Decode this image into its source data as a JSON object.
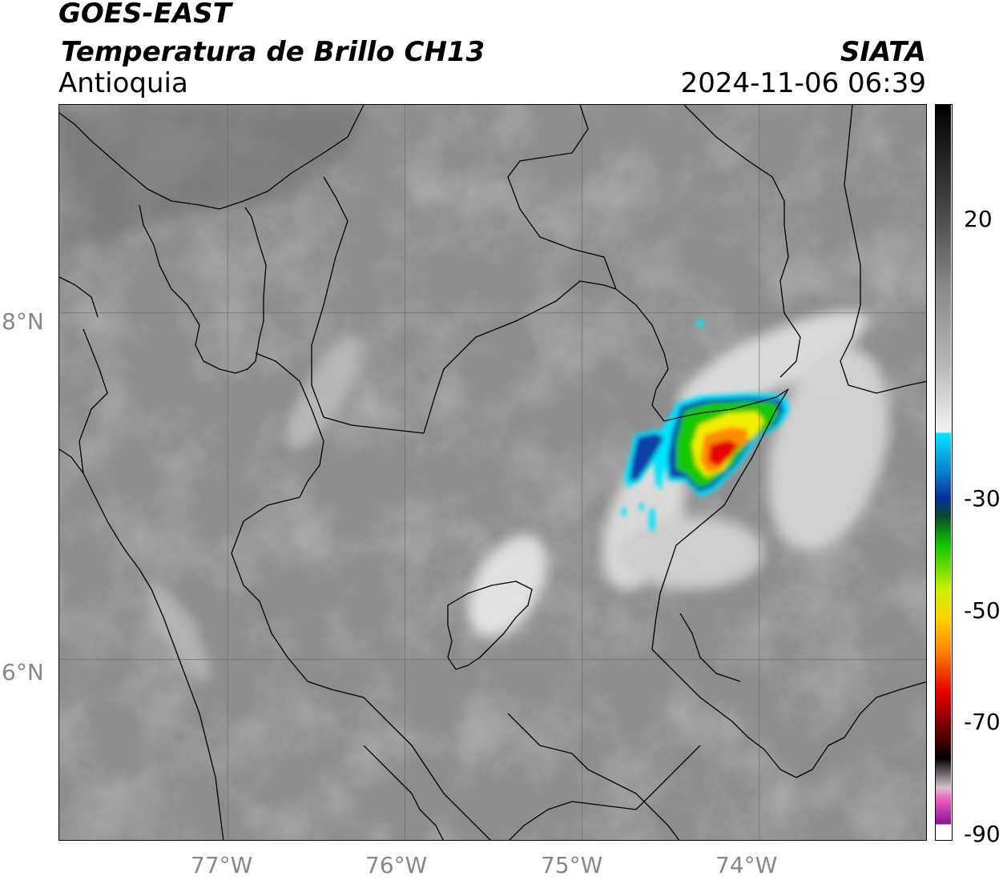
{
  "header": {
    "satellite": "GOES-EAST",
    "product": "Temperatura de Brillo CH13",
    "region": "Antioquia",
    "agency": "SIATA",
    "datetime": "2024-11-06 06:39"
  },
  "map": {
    "lat_ticks": [
      "8°N",
      "6°N"
    ],
    "lon_ticks": [
      "77°W",
      "76°W",
      "75°W",
      "74°W"
    ],
    "lat_values": [
      8,
      6
    ],
    "lon_values": [
      -77,
      -76,
      -75,
      -74
    ],
    "extent": {
      "lon_min": -77.95,
      "lon_max": -73.05,
      "lat_min": 4.95,
      "lat_max": 9.2
    },
    "grid": true
  },
  "colorbar": {
    "tick_labels": [
      "20",
      "-30",
      "-50",
      "-70",
      "-90"
    ],
    "tick_values": [
      20,
      -30,
      -50,
      -70,
      -90
    ],
    "range": [
      -90,
      40
    ],
    "colors": {
      "warm_gray": "#8a8a8a",
      "white": "#f4f4f4",
      "cyan": "#00e5ff",
      "blue": "#0b3fa8",
      "green": "#12c800",
      "yellow": "#f2ef00",
      "orange": "#ff8c00",
      "red": "#e60000",
      "dark_red": "#5a0000",
      "black": "#000000",
      "pink": "#f05fc0",
      "purple": "#8a1090"
    }
  }
}
